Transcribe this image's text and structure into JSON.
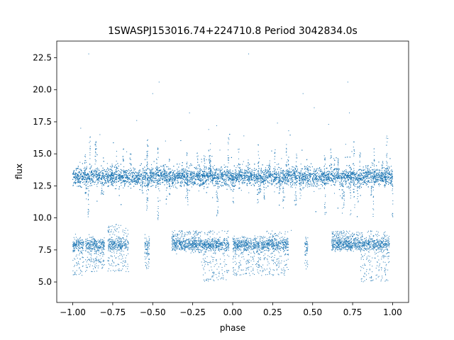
{
  "chart_data": {
    "type": "scatter",
    "title": "1SWASPJ153016.74+224710.8 Period 3042834.0s",
    "xlabel": "phase",
    "ylabel": "flux",
    "xlim": [
      -1.1,
      1.1
    ],
    "ylim": [
      3.4,
      23.8
    ],
    "xticks": [
      -1.0,
      -0.75,
      -0.5,
      -0.25,
      0.0,
      0.25,
      0.5,
      0.75,
      1.0
    ],
    "xtick_labels": [
      "−1.00",
      "−0.75",
      "−0.50",
      "−0.25",
      "0.00",
      "0.25",
      "0.50",
      "0.75",
      "1.00"
    ],
    "yticks": [
      5.0,
      7.5,
      10.0,
      12.5,
      15.0,
      17.5,
      20.0,
      22.5
    ],
    "ytick_labels": [
      "5.0",
      "7.5",
      "10.0",
      "12.5",
      "15.0",
      "17.5",
      "20.0",
      "22.5"
    ],
    "grid": false,
    "marker_color": "#1f77b4",
    "series": [
      {
        "description": "main band",
        "x_range": [
          -1.0,
          1.0
        ],
        "y_center": 13.2,
        "y_spread": 0.35
      },
      {
        "description": "low-flux segments",
        "segments": [
          {
            "x": [
              -1.0,
              -0.93
            ],
            "y": [
              5.5,
              8.5
            ]
          },
          {
            "x": [
              -0.92,
              -0.8
            ],
            "y": [
              5.8,
              8.2
            ]
          },
          {
            "x": [
              -0.78,
              -0.65
            ],
            "y": [
              5.8,
              9.5
            ]
          },
          {
            "x": [
              -0.55,
              -0.52
            ],
            "y": [
              6.0,
              7.5
            ]
          },
          {
            "x": [
              -0.38,
              -0.2
            ],
            "y": [
              7.5,
              9.0
            ]
          },
          {
            "x": [
              -0.2,
              -0.02
            ],
            "y": [
              5.0,
              9.0
            ]
          },
          {
            "x": [
              0.0,
              0.2
            ],
            "y": [
              5.5,
              8.6
            ]
          },
          {
            "x": [
              0.2,
              0.35
            ],
            "y": [
              5.5,
              9.0
            ]
          },
          {
            "x": [
              0.45,
              0.47
            ],
            "y": [
              6.0,
              7.5
            ]
          },
          {
            "x": [
              0.62,
              0.8
            ],
            "y": [
              7.5,
              9.0
            ]
          },
          {
            "x": [
              0.8,
              0.98
            ],
            "y": [
              5.0,
              9.0
            ]
          }
        ]
      },
      {
        "description": "high outliers",
        "points": [
          [
            -0.9,
            22.8
          ],
          [
            0.1,
            22.8
          ],
          [
            -0.46,
            20.6
          ],
          [
            0.72,
            20.6
          ],
          [
            -0.27,
            18.2
          ],
          [
            0.73,
            18.2
          ],
          [
            -0.5,
            19.7
          ],
          [
            0.44,
            19.7
          ],
          [
            -0.83,
            16.5
          ],
          [
            0.07,
            16.4
          ],
          [
            -0.1,
            17.2
          ],
          [
            0.6,
            17.3
          ],
          [
            -0.95,
            17.0
          ],
          [
            0.97,
            16.2
          ],
          [
            -0.42,
            16.0
          ],
          [
            0.35,
            16.8
          ],
          [
            -0.6,
            17.6
          ],
          [
            0.28,
            17.4
          ],
          [
            0.51,
            18.6
          ],
          [
            -0.15,
            16.9
          ]
        ]
      }
    ]
  }
}
